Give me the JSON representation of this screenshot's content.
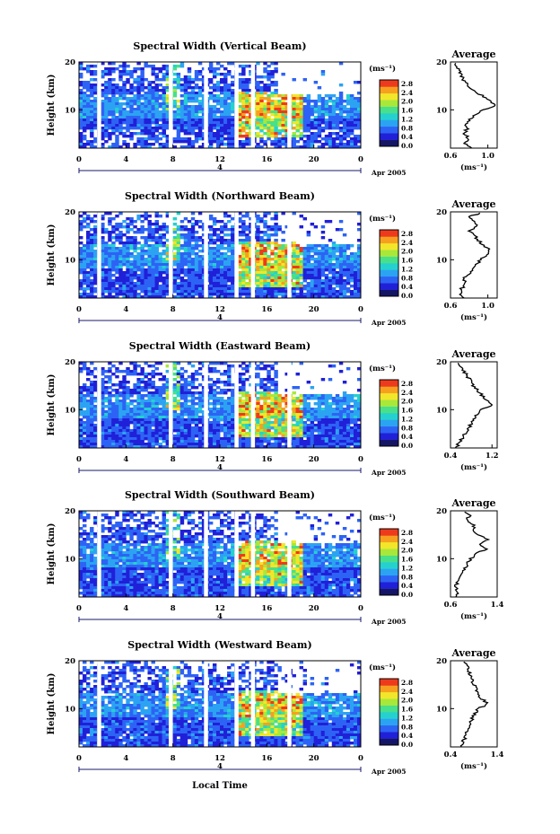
{
  "figure": {
    "bottom_label": "Local Time",
    "colorbar_unit": "(ms⁻¹)",
    "colorbar_ticks": [
      "0.0",
      "0.4",
      "0.8",
      "1.2",
      "1.6",
      "2.0",
      "2.4",
      "2.8"
    ],
    "colorbar_colors": [
      "#151565",
      "#2020d8",
      "#2d63f5",
      "#2ca3f2",
      "#25d1cf",
      "#48e08a",
      "#a8e83a",
      "#f2e62a",
      "#f7a020",
      "#ee3a1c"
    ],
    "height_ticks": [
      "20",
      "10"
    ],
    "time_ticks": [
      "0",
      "4",
      "8",
      "12",
      "16",
      "20",
      "0"
    ],
    "day_label": "4",
    "month_label": "Apr 2005",
    "avg_title": "Average",
    "avg_xlabel": "(ms⁻¹)"
  },
  "chart_data": [
    {
      "type": "heatmap",
      "title": "Spectral Width (Vertical Beam)",
      "ylabel": "Height (km)",
      "xlabel": "Local Time",
      "x_range_hours": [
        0,
        24
      ],
      "y_range_km": [
        2,
        20
      ],
      "color_range": [
        0.0,
        3.0
      ],
      "data_gaps_hours": [
        1.7,
        7.8,
        10.8,
        13.4,
        14.8,
        17.9
      ],
      "average_profile": {
        "xticks": [
          "0.6",
          "1.0"
        ],
        "xlim": [
          0.6,
          1.1
        ],
        "height_km": [
          2,
          3,
          4,
          5,
          6,
          7,
          8,
          9,
          10,
          11,
          12,
          13,
          14,
          15,
          16,
          17,
          18,
          19,
          20
        ],
        "width": [
          0.82,
          0.76,
          0.8,
          0.74,
          0.78,
          0.76,
          0.8,
          0.86,
          0.96,
          1.08,
          1.02,
          0.94,
          0.84,
          0.8,
          0.74,
          0.72,
          0.7,
          0.66,
          0.64
        ]
      }
    },
    {
      "type": "heatmap",
      "title": "Spectral Width (Northward Beam)",
      "ylabel": "Height (km)",
      "xlabel": "Local Time",
      "x_range_hours": [
        0,
        24
      ],
      "y_range_km": [
        2,
        20
      ],
      "color_range": [
        0.0,
        3.0
      ],
      "data_gaps_hours": [
        1.7,
        7.8,
        10.8,
        13.4,
        14.8,
        17.9
      ],
      "average_profile": {
        "xticks": [
          "0.6",
          "1.0"
        ],
        "xlim": [
          0.6,
          1.1
        ],
        "height_km": [
          2,
          3,
          4,
          5,
          6,
          7,
          8,
          9,
          10,
          11,
          12,
          13,
          14,
          15,
          16,
          17,
          18,
          19,
          20
        ],
        "width": [
          0.74,
          0.7,
          0.72,
          0.76,
          0.74,
          0.8,
          0.84,
          0.88,
          0.92,
          0.98,
          1.02,
          0.96,
          0.9,
          0.86,
          0.8,
          0.88,
          0.84,
          0.8,
          0.96
        ]
      }
    },
    {
      "type": "heatmap",
      "title": "Spectral Width (Eastward Beam)",
      "ylabel": "Height (km)",
      "xlabel": "Local Time",
      "x_range_hours": [
        0,
        24
      ],
      "y_range_km": [
        2,
        20
      ],
      "color_range": [
        0.0,
        3.0
      ],
      "data_gaps_hours": [
        1.7,
        7.8,
        10.8,
        13.4,
        14.8,
        17.9
      ],
      "average_profile": {
        "xticks": [
          "0.4",
          "1.2"
        ],
        "xlim": [
          0.4,
          1.3
        ],
        "height_km": [
          2,
          3,
          4,
          5,
          6,
          7,
          8,
          9,
          10,
          11,
          12,
          13,
          14,
          15,
          16,
          17,
          18,
          19,
          20
        ],
        "width": [
          0.5,
          0.56,
          0.62,
          0.68,
          0.74,
          0.8,
          0.86,
          0.9,
          1.0,
          1.2,
          1.1,
          1.0,
          0.92,
          0.84,
          0.8,
          0.72,
          0.66,
          0.6,
          0.56
        ]
      }
    },
    {
      "type": "heatmap",
      "title": "Spectral Width (Southward Beam)",
      "ylabel": "Height (km)",
      "xlabel": "Local Time",
      "x_range_hours": [
        0,
        24
      ],
      "y_range_km": [
        2,
        20
      ],
      "color_range": [
        0.0,
        3.0
      ],
      "data_gaps_hours": [
        1.7,
        7.8,
        10.8,
        13.4,
        14.8,
        17.9
      ],
      "average_profile": {
        "xticks": [
          "0.6",
          "1.4"
        ],
        "xlim": [
          0.6,
          1.4
        ],
        "height_km": [
          2,
          3,
          4,
          5,
          6,
          7,
          8,
          9,
          10,
          11,
          12,
          13,
          14,
          15,
          16,
          17,
          18,
          19,
          20
        ],
        "width": [
          0.7,
          0.74,
          0.68,
          0.72,
          0.76,
          0.8,
          0.84,
          0.9,
          0.94,
          1.04,
          1.2,
          1.1,
          1.24,
          1.06,
          0.96,
          1.02,
          0.88,
          0.92,
          0.84
        ]
      }
    },
    {
      "type": "heatmap",
      "title": "Spectral Width (Westward Beam)",
      "ylabel": "Height (km)",
      "xlabel": "Local Time",
      "x_range_hours": [
        0,
        24
      ],
      "y_range_km": [
        2,
        20
      ],
      "color_range": [
        0.0,
        3.0
      ],
      "data_gaps_hours": [
        1.7,
        7.8,
        10.8,
        13.4,
        14.8,
        17.9
      ],
      "average_profile": {
        "xticks": [
          "0.4",
          "1.4"
        ],
        "xlim": [
          0.4,
          1.4
        ],
        "height_km": [
          2,
          3,
          4,
          5,
          6,
          7,
          8,
          9,
          10,
          11,
          12,
          13,
          14,
          15,
          16,
          17,
          18,
          19,
          20
        ],
        "width": [
          0.6,
          0.66,
          0.72,
          0.74,
          0.78,
          0.82,
          0.86,
          0.92,
          1.0,
          1.2,
          1.08,
          0.98,
          0.94,
          0.9,
          0.86,
          0.82,
          0.8,
          0.76,
          0.7
        ]
      }
    }
  ]
}
